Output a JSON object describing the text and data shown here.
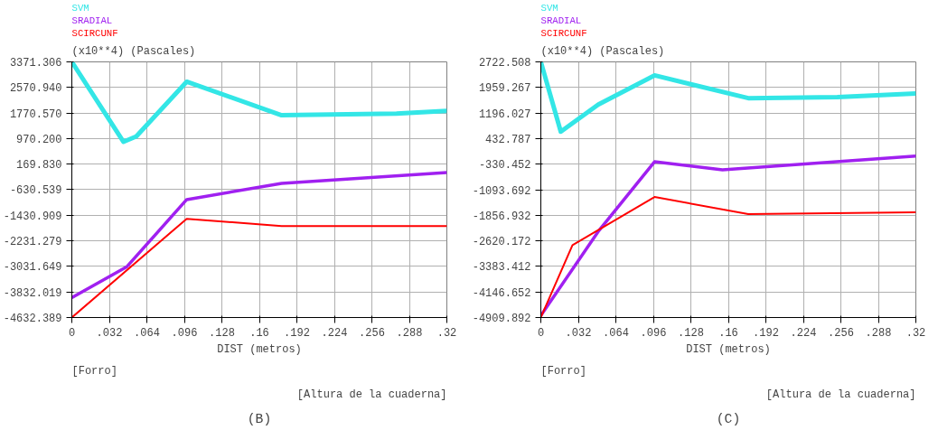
{
  "chart_data": [
    {
      "type": "line",
      "title": "(B)",
      "ylabel": "(x10**4) (Pascales)",
      "xlabel": "DIST (metros)",
      "annotations": [
        "[Forro]",
        "[Altura de la cuaderna]"
      ],
      "legend": "top left",
      "grid": true,
      "xlim": [
        0,
        0.32
      ],
      "xticks": [
        0,
        {
          "value": 0.032,
          "label": ".032"
        },
        {
          "value": 0.064,
          "label": ".064"
        },
        {
          "value": 0.096,
          "label": ".096"
        },
        {
          "value": 0.128,
          "label": ".128"
        },
        {
          "value": 0.16,
          "label": ".16"
        },
        {
          "value": 0.192,
          "label": ".192"
        },
        {
          "value": 0.224,
          "label": ".224"
        },
        {
          "value": 0.256,
          "label": ".256"
        },
        {
          "value": 0.288,
          "label": ".288"
        },
        {
          "value": 0.32,
          "label": ".32"
        }
      ],
      "ylim": [
        -4632.389,
        3371.306
      ],
      "yticks": [
        {
          "value": 3371.306,
          "label": "3371.306"
        },
        {
          "value": 2570.94,
          "label": "2570.940"
        },
        {
          "value": 1770.57,
          "label": "1770.570"
        },
        {
          "value": 970.2,
          "label": "970.200"
        },
        {
          "value": 169.83,
          "label": "169.830"
        },
        {
          "value": -630.539,
          "label": "-630.539"
        },
        {
          "value": -1430.909,
          "label": "-1430.909"
        },
        {
          "value": -2231.279,
          "label": "-2231.279"
        },
        {
          "value": -3031.649,
          "label": "-3031.649"
        },
        {
          "value": -3832.019,
          "label": "-3832.019"
        },
        {
          "value": -4632.389,
          "label": "-4632.389"
        }
      ],
      "series": [
        {
          "name": "SVM",
          "color": "#33e6e6",
          "x": [
            0,
            0.044,
            0.055,
            0.098,
            0.179,
            0.277,
            0.32
          ],
          "values": [
            3371,
            870,
            1040,
            2750,
            1700,
            1750,
            1840
          ]
        },
        {
          "name": "SRADIAL",
          "color": "#a020f0",
          "x": [
            0,
            0.047,
            0.098,
            0.179,
            0.32
          ],
          "values": [
            -4010,
            -3040,
            -940,
            -430,
            -90
          ]
        },
        {
          "name": "SCIRCUNF",
          "color": "#ff0000",
          "x": [
            0,
            0.098,
            0.179,
            0.32
          ],
          "values": [
            -4632,
            -1540,
            -1770,
            -1770
          ]
        }
      ]
    },
    {
      "type": "line",
      "title": "(C)",
      "ylabel": "(x10**4) (Pascales)",
      "xlabel": "DIST (metros)",
      "annotations": [
        "[Forro]",
        "[Altura de la cuaderna]"
      ],
      "legend": "top left",
      "grid": true,
      "xlim": [
        0,
        0.32
      ],
      "xticks": [
        0,
        {
          "value": 0.032,
          "label": ".032"
        },
        {
          "value": 0.064,
          "label": ".064"
        },
        {
          "value": 0.096,
          "label": ".096"
        },
        {
          "value": 0.128,
          "label": ".128"
        },
        {
          "value": 0.16,
          "label": ".16"
        },
        {
          "value": 0.192,
          "label": ".192"
        },
        {
          "value": 0.224,
          "label": ".224"
        },
        {
          "value": 0.256,
          "label": ".256"
        },
        {
          "value": 0.288,
          "label": ".288"
        },
        {
          "value": 0.32,
          "label": ".32"
        }
      ],
      "ylim": [
        -4909.892,
        2722.508
      ],
      "yticks": [
        {
          "value": 2722.508,
          "label": "2722.508"
        },
        {
          "value": 1959.267,
          "label": "1959.267"
        },
        {
          "value": 1196.027,
          "label": "1196.027"
        },
        {
          "value": 432.787,
          "label": "432.787"
        },
        {
          "value": -330.452,
          "label": "-330.452"
        },
        {
          "value": -1093.692,
          "label": "-1093.692"
        },
        {
          "value": -1856.932,
          "label": "-1856.932"
        },
        {
          "value": -2620.172,
          "label": "-2620.172"
        },
        {
          "value": -3383.412,
          "label": "-3383.412"
        },
        {
          "value": -4146.652,
          "label": "-4146.652"
        },
        {
          "value": -4909.892,
          "label": "-4909.892"
        }
      ],
      "series": [
        {
          "name": "SVM",
          "color": "#33e6e6",
          "x": [
            0,
            0.017,
            0.049,
            0.097,
            0.177,
            0.253,
            0.32
          ],
          "values": [
            2722,
            640,
            1450,
            2320,
            1640,
            1670,
            1780
          ]
        },
        {
          "name": "SRADIAL",
          "color": "#a020f0",
          "x": [
            0,
            0.049,
            0.097,
            0.155,
            0.32
          ],
          "values": [
            -4850,
            -2340,
            -260,
            -500,
            -90
          ]
        },
        {
          "name": "SCIRCUNF",
          "color": "#ff0000",
          "x": [
            0,
            0.027,
            0.097,
            0.177,
            0.32
          ],
          "values": [
            -4909,
            -2750,
            -1310,
            -1820,
            -1770
          ]
        }
      ]
    }
  ]
}
